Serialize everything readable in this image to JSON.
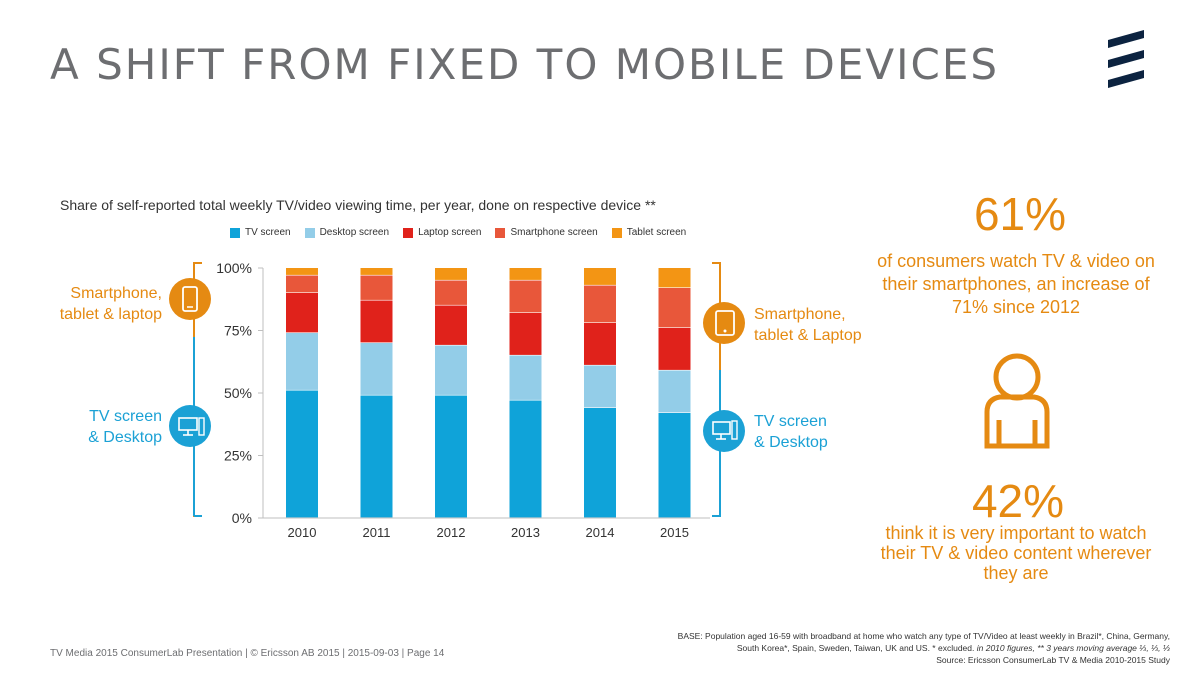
{
  "slide": {
    "title": "A SHIFT FROM FIXED TO MOBILE DEVICES",
    "chart_title": "Share of self-reported total weekly TV/video viewing time, per year, done on respective device **",
    "left_group_top": "Smartphone,\ntablet & laptop",
    "left_group_bottom": "TV screen\n& Desktop",
    "right_group_top": "Smartphone,\ntablet & Laptop",
    "right_group_bottom": "TV screen\n& Desktop",
    "stat1_value": "61%",
    "stat1_text": "of consumers watch TV & video on their smartphones, an increase of 71% since 2012",
    "stat2_value": "42%",
    "stat2_text": "think it is very important to watch their TV & video content wherever they are",
    "footer": "TV Media 2015 ConsumerLab Presentation  |  © Ericsson AB 2015  |  2015-09-03  |  Page 14",
    "base_line1": "BASE: Population aged 16-59 with broadband at home who watch any type of TV/Video at least weekly in Brazil*, China, Germany,",
    "base_line2a": "South Korea*, Spain, Sweden, Taiwan, UK and US.  * excluded. ",
    "base_line2b": "in 2010 figures, ** 3 years moving average ⅓, ⅓, ⅓",
    "source": "Source: Ericsson ConsumerLab TV & Media 2010-2015 Study",
    "icons": [
      "phone-icon",
      "desktop-icon",
      "tablet-icon",
      "monitor-icon",
      "person-icon",
      "ericsson-logo"
    ]
  },
  "colors": {
    "orange": "#e58a12",
    "blue": "#1ba1d5",
    "tv": "#0fa3d9",
    "desktop": "#93cde8",
    "laptop": "#e0221b",
    "smartphone": "#e8573a",
    "tablet": "#f39514"
  },
  "chart_data": {
    "type": "bar",
    "stacked": true,
    "categories": [
      "2010",
      "2011",
      "2012",
      "2013",
      "2014",
      "2015"
    ],
    "series": [
      {
        "name": "TV screen",
        "color": "#0fa3d9",
        "values": [
          51,
          49,
          49,
          47,
          44,
          42
        ]
      },
      {
        "name": "Desktop screen",
        "color": "#93cde8",
        "values": [
          23,
          21,
          20,
          18,
          17,
          17
        ]
      },
      {
        "name": "Laptop screen",
        "color": "#e0221b",
        "values": [
          16,
          17,
          16,
          17,
          17,
          17
        ]
      },
      {
        "name": "Smartphone screen",
        "color": "#e8573a",
        "values": [
          7,
          10,
          10,
          13,
          15,
          16
        ]
      },
      {
        "name": "Tablet screen",
        "color": "#f39514",
        "values": [
          3,
          3,
          5,
          5,
          7,
          8
        ]
      }
    ],
    "y_ticks": [
      "0%",
      "25%",
      "50%",
      "75%",
      "100%"
    ],
    "ylim": [
      0,
      100
    ],
    "title": "Share of self-reported total weekly TV/video viewing time, per year, done on respective device **",
    "grid": false,
    "legend_position": "top"
  }
}
